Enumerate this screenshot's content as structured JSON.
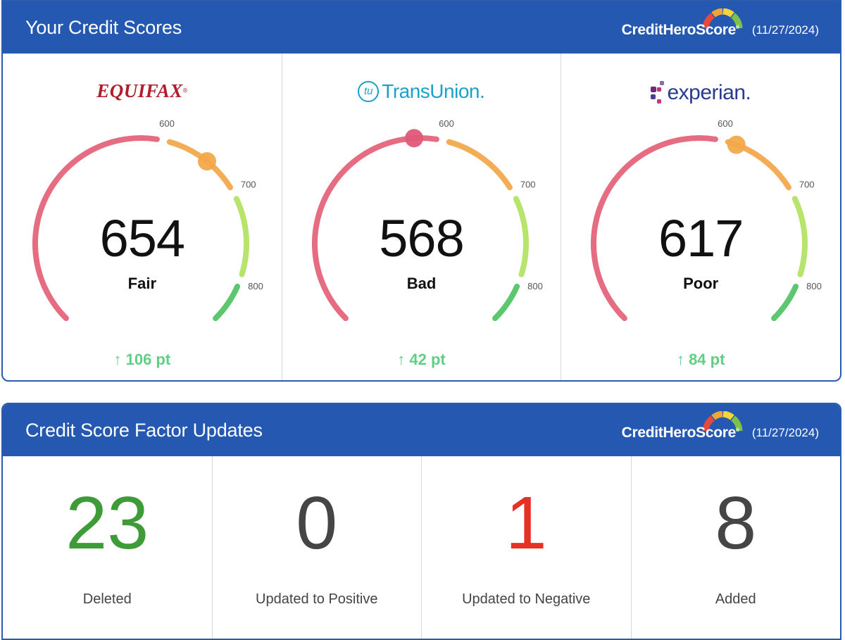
{
  "scores_card": {
    "title": "Your Credit Scores",
    "brand": {
      "prefix": "CreditHero",
      "suffix": "Score",
      "mark": "®"
    },
    "date": "(11/27/2024)",
    "bureaus": [
      {
        "name": "EQUIFAX",
        "logo_mark": "®",
        "score": "654",
        "rating": "Fair",
        "change": "106 pt",
        "change_arrow": "↑",
        "marker_color": "#f2a94b"
      },
      {
        "name": "TransUnion",
        "logo_icon_text": "tu",
        "logo_mark": ".",
        "score": "568",
        "rating": "Bad",
        "change": "42 pt",
        "change_arrow": "↑",
        "marker_color": "#e0587a"
      },
      {
        "name": "experian",
        "logo_mark": ".",
        "score": "617",
        "rating": "Poor",
        "change": "84 pt",
        "change_arrow": "↑",
        "marker_color": "#f2a94b"
      }
    ],
    "gauge_scale": {
      "min": 300,
      "max": 850,
      "ticks": [
        "600",
        "700",
        "800"
      ]
    },
    "colors": {
      "bad": "#e56c81",
      "fair": "#f4ad57",
      "good": "#b6e46c",
      "excellent": "#5cc76e"
    }
  },
  "factors_card": {
    "title": "Credit Score Factor Updates",
    "brand": {
      "prefix": "CreditHero",
      "suffix": "Score",
      "mark": "®"
    },
    "date": "(11/27/2024)",
    "items": [
      {
        "value": "23",
        "label": "Deleted",
        "color": "#3e9b37"
      },
      {
        "value": "0",
        "label": "Updated to Positive",
        "color": "#454545"
      },
      {
        "value": "1",
        "label": "Updated to Negative",
        "color": "#e53126"
      },
      {
        "value": "8",
        "label": "Added",
        "color": "#454545"
      }
    ]
  }
}
